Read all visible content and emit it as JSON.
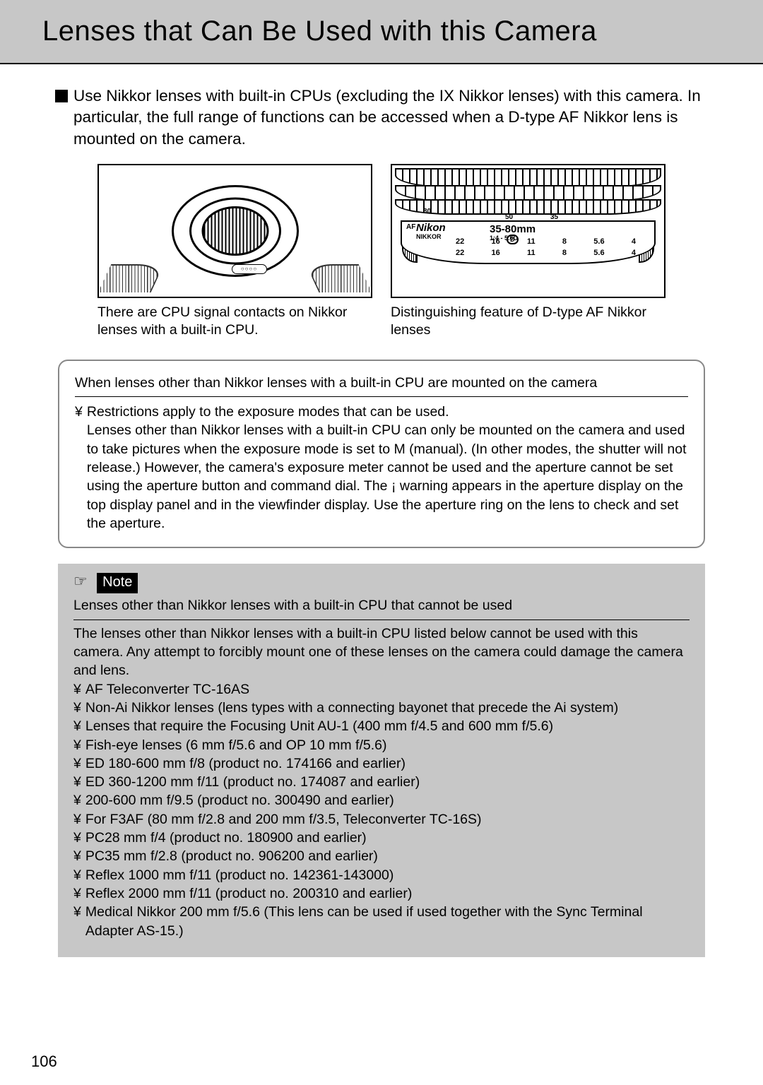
{
  "page": {
    "title": "Lenses that Can Be Used with this Camera",
    "number": "106"
  },
  "intro": "Use Nikkor lenses with built-in CPUs (excluding the IX Nikkor lenses) with this camera. In particular, the full range of functions can be accessed when a D-type AF Nikkor lens is mounted on the camera.",
  "figures": {
    "left_caption": "There are CPU signal contacts on Nikkor lenses with a built-in CPU.",
    "right_caption": "Distinguishing feature of D-type AF Nikkor lenses",
    "barrel": {
      "brand_top": "Nikon",
      "brand_sub": "NIKKOR",
      "af": "AF",
      "focal": "35-80mm",
      "ratio": "1:4 - 5.6D",
      "top_50": "50",
      "top_35": "35",
      "top_80": "80",
      "scale1": [
        "22",
        "16",
        "11",
        "8",
        "5.6",
        "4"
      ],
      "scale2": [
        "22",
        "16",
        "11",
        "8",
        "5.6",
        "4"
      ]
    }
  },
  "callout": {
    "title": "When lenses other than Nikkor lenses with a built-in CPU are mounted on the camera",
    "bullet_marker": "¥",
    "body": "Restrictions apply to the exposure modes that can be used.\nLenses other than Nikkor lenses with a built-in CPU can only be mounted on the camera and used to take pictures when the exposure mode is set to M (manual). (In other modes, the shutter will not release.) However, the camera's exposure meter cannot be used and the aperture cannot be set using the aperture button and command dial. The  ¡     warning appears in the aperture display on the top display panel and in the viewfinder display. Use the aperture ring on the lens to check and set the aperture."
  },
  "note": {
    "tag": "Note",
    "pointer": "☞",
    "heading": "Lenses other than Nikkor lenses with a built-in CPU that cannot be used",
    "intro": "The lenses other than Nikkor lenses with a built-in CPU listed below cannot be used with this camera. Any attempt to forcibly mount one of these lenses on the camera could damage the camera and lens.",
    "bullet_marker": "¥",
    "items": [
      "AF Teleconverter TC-16AS",
      "Non-Ai Nikkor lenses (lens types with a connecting bayonet that precede the Ai system)",
      "Lenses that require the Focusing Unit AU-1 (400 mm f/4.5 and 600 mm f/5.6)",
      "Fish-eye lenses (6 mm f/5.6 and OP 10 mm f/5.6)",
      "ED 180-600 mm f/8 (product no. 174166 and earlier)",
      "ED 360-1200 mm f/11 (product no. 174087 and earlier)",
      "200-600 mm f/9.5 (product no. 300490 and earlier)",
      "For F3AF (80 mm f/2.8 and 200 mm f/3.5, Teleconverter TC-16S)",
      "PC28 mm f/4 (product no. 180900 and earlier)",
      "PC35 mm f/2.8 (product no. 906200 and earlier)",
      "Reflex 1000 mm f/11 (product no. 142361-143000)",
      "Reflex 2000 mm f/11 (product no. 200310 and earlier)",
      "Medical Nikkor 200 mm f/5.6 (This lens can be used if used together with the Sync Terminal Adapter AS-15.)"
    ]
  }
}
